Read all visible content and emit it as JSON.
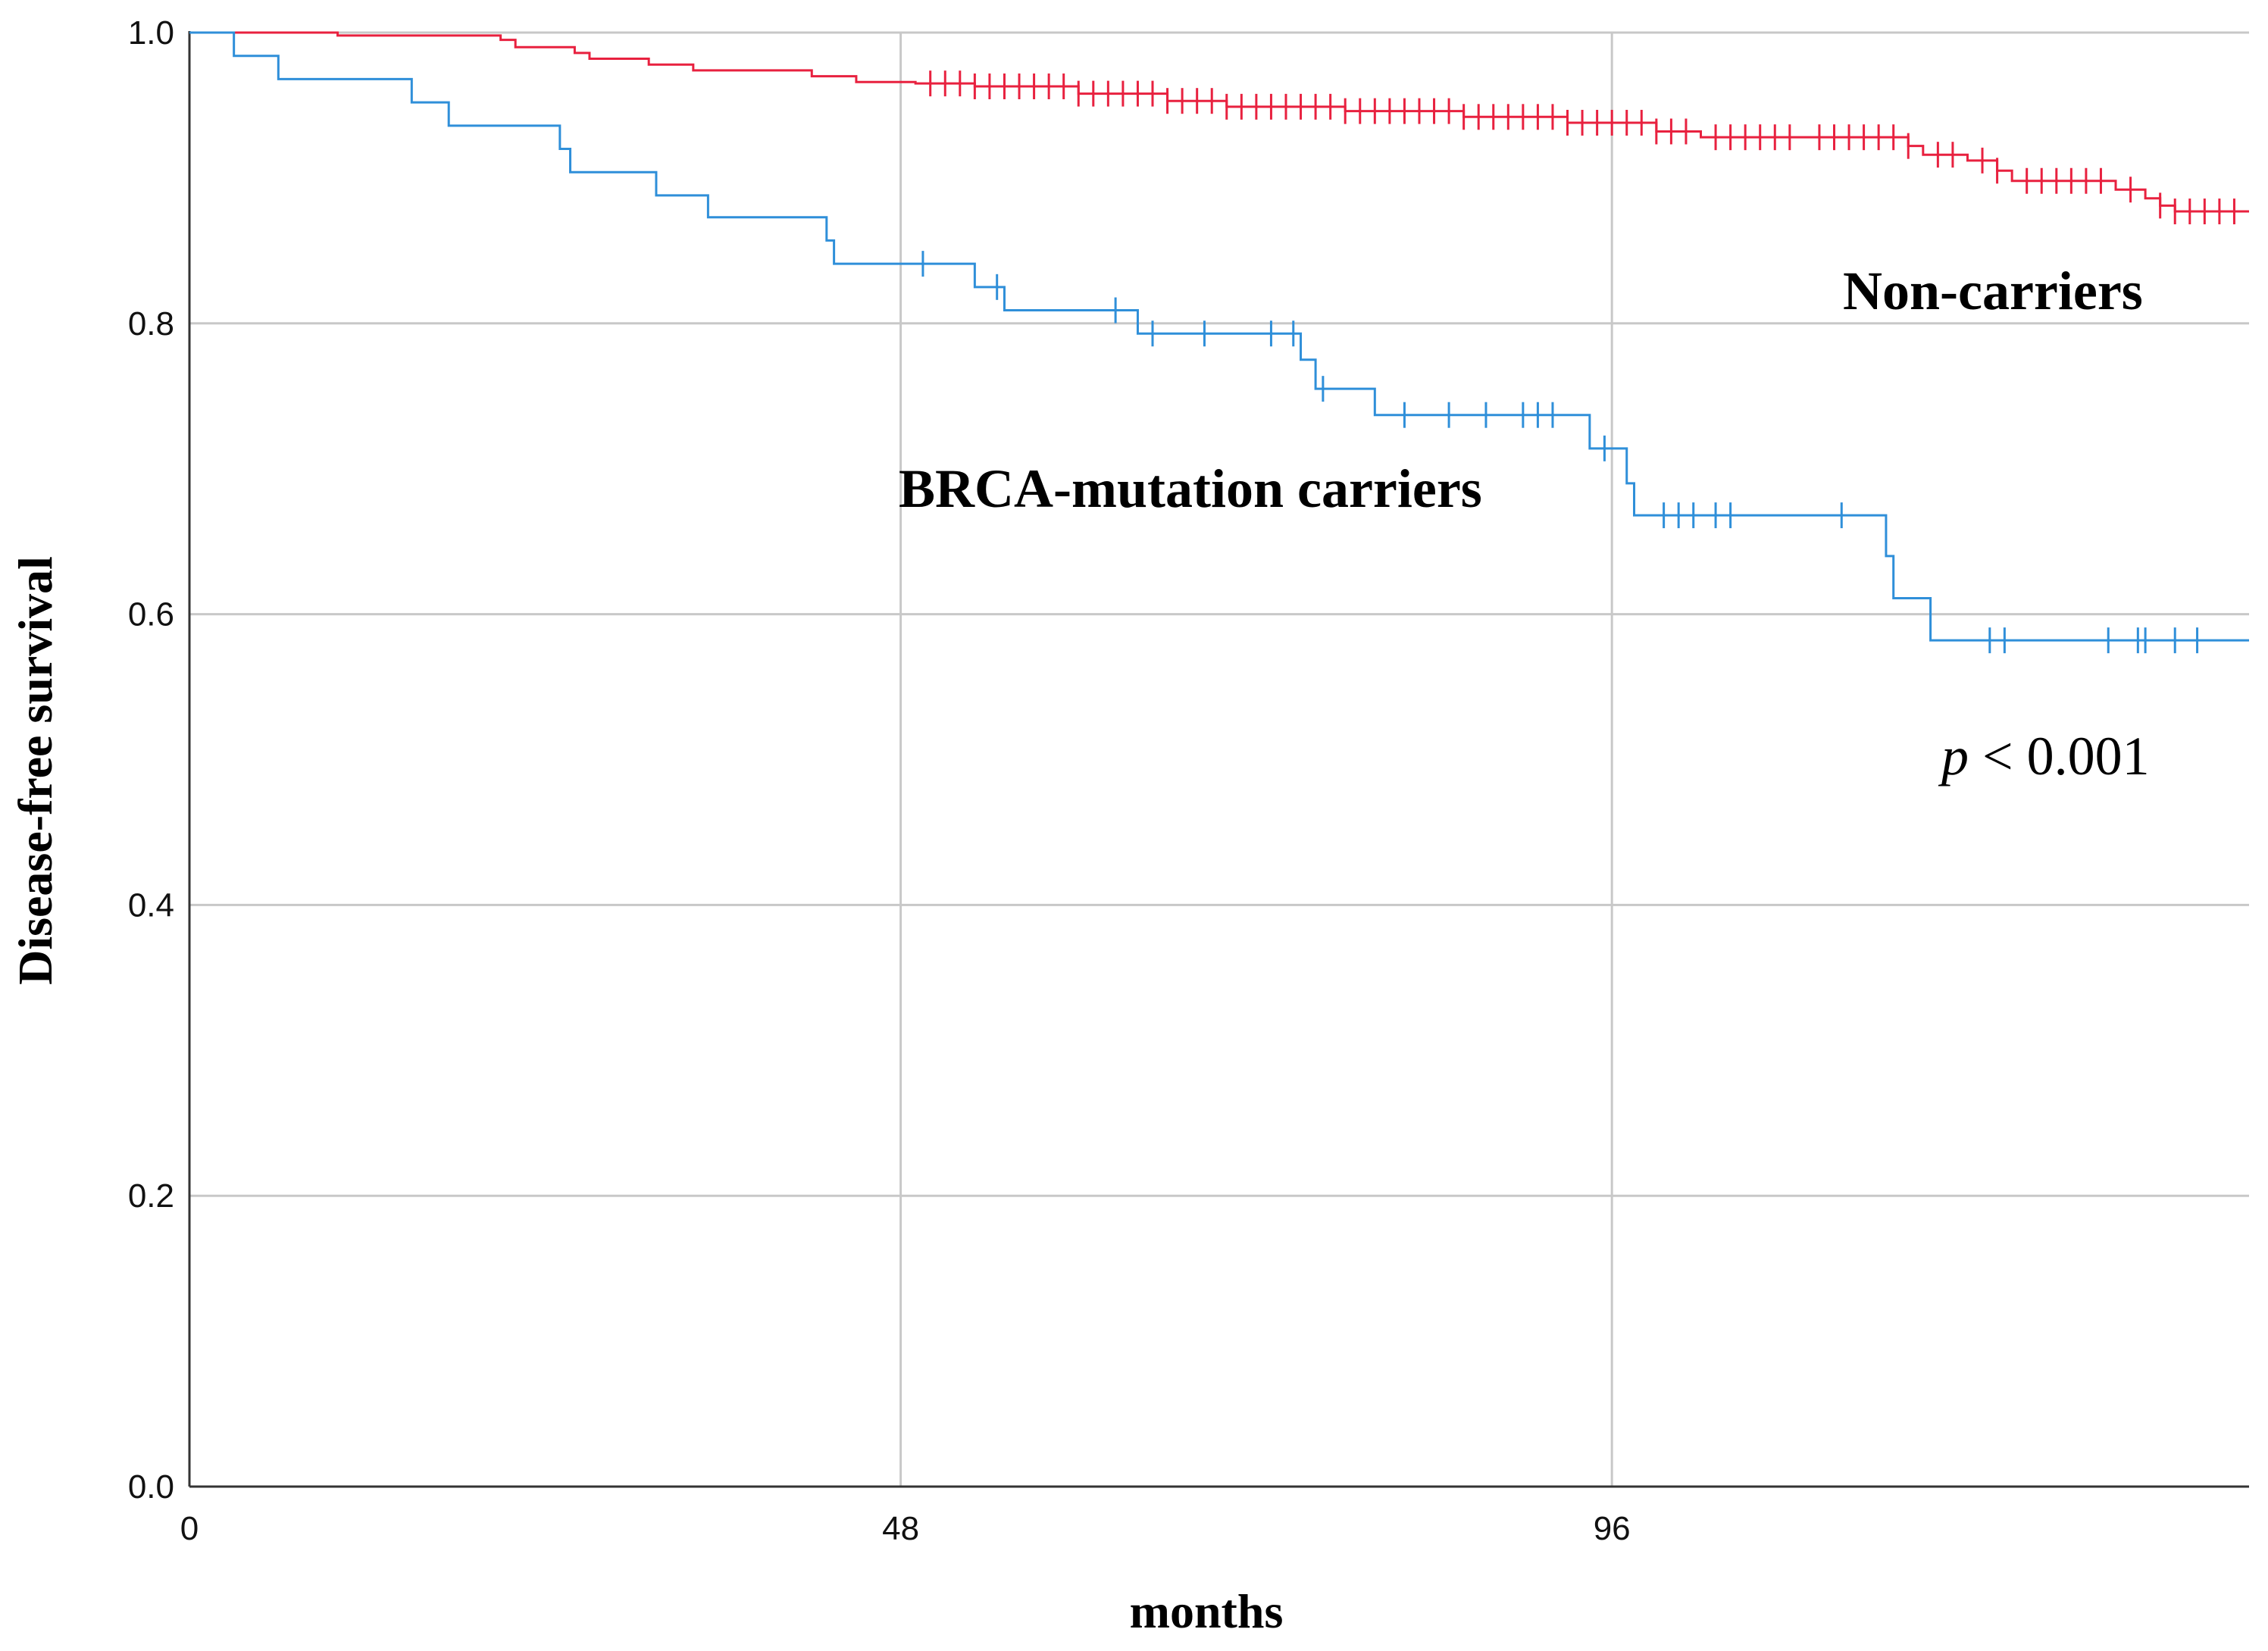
{
  "chart_data": {
    "type": "line",
    "subtype": "kaplan-meier",
    "xlabel": "months",
    "ylabel": "Disease-free survival",
    "xlim": [
      0,
      139
    ],
    "ylim": [
      0,
      1
    ],
    "xticks": [
      0,
      48,
      96
    ],
    "xtick_labels": [
      "0",
      "48",
      "96"
    ],
    "yticks": [
      0,
      0.2,
      0.4,
      0.6,
      0.8,
      1.0
    ],
    "ytick_labels": [
      "0.0",
      "0.2",
      "0.4",
      "0.6",
      "0.8",
      "1.0"
    ],
    "grid": true,
    "series": [
      {
        "name": "Non-carriers",
        "color": "#e8213f",
        "step_points": [
          [
            0,
            1.0
          ],
          [
            10,
            0.998
          ],
          [
            21,
            0.995
          ],
          [
            22,
            0.99
          ],
          [
            26,
            0.986
          ],
          [
            27,
            0.982
          ],
          [
            31,
            0.978
          ],
          [
            34,
            0.974
          ],
          [
            42,
            0.97
          ],
          [
            45,
            0.966
          ],
          [
            49,
            0.965
          ],
          [
            53,
            0.963
          ],
          [
            60,
            0.958
          ],
          [
            66,
            0.953
          ],
          [
            70,
            0.949
          ],
          [
            78,
            0.946
          ],
          [
            86,
            0.942
          ],
          [
            93,
            0.938
          ],
          [
            99,
            0.932
          ],
          [
            102,
            0.928
          ],
          [
            116,
            0.922
          ],
          [
            117,
            0.916
          ],
          [
            120,
            0.912
          ],
          [
            122,
            0.905
          ],
          [
            123,
            0.898
          ],
          [
            130,
            0.892
          ],
          [
            132,
            0.886
          ],
          [
            133,
            0.881
          ],
          [
            134,
            0.877
          ],
          [
            139,
            0.877
          ]
        ],
        "censor_x": [
          50,
          51,
          52,
          53,
          54,
          55,
          56,
          57,
          58,
          59,
          60,
          61,
          62,
          63,
          64,
          65,
          66,
          67,
          68,
          69,
          70,
          71,
          72,
          73,
          74,
          75,
          76,
          77,
          78,
          79,
          80,
          81,
          82,
          83,
          84,
          85,
          86,
          87,
          88,
          89,
          90,
          91,
          92,
          93,
          94,
          95,
          96,
          97,
          98,
          99,
          100,
          101,
          103,
          104,
          105,
          106,
          107,
          108,
          110,
          111,
          112,
          113,
          114,
          115,
          116,
          118,
          119,
          121,
          122,
          124,
          125,
          126,
          127,
          128,
          129,
          131,
          133,
          134,
          135,
          136,
          137,
          138
        ]
      },
      {
        "name": "BRCA-mutation carriers",
        "color": "#2f8fd9",
        "step_points": [
          [
            0,
            1.0
          ],
          [
            3,
            0.984
          ],
          [
            6,
            0.968
          ],
          [
            15,
            0.952
          ],
          [
            17.5,
            0.936
          ],
          [
            25,
            0.92
          ],
          [
            25.7,
            0.904
          ],
          [
            31.5,
            0.888
          ],
          [
            35,
            0.873
          ],
          [
            43,
            0.857
          ],
          [
            43.5,
            0.841
          ],
          [
            53,
            0.825
          ],
          [
            55,
            0.809
          ],
          [
            64,
            0.793
          ],
          [
            75,
            0.775
          ],
          [
            76,
            0.755
          ],
          [
            80,
            0.737
          ],
          [
            94.5,
            0.714
          ],
          [
            97,
            0.69
          ],
          [
            97.5,
            0.668
          ],
          [
            114.5,
            0.64
          ],
          [
            115,
            0.611
          ],
          [
            117.5,
            0.582
          ],
          [
            139,
            0.582
          ]
        ],
        "censor_x": [
          49.5,
          54.5,
          62.5,
          65,
          68.5,
          73,
          74.5,
          76.5,
          82,
          85,
          87.5,
          90,
          91,
          92,
          95.5,
          99.5,
          100.5,
          101.5,
          103,
          104,
          111.5,
          121.5,
          122.5,
          129.5,
          131.5,
          132,
          134,
          135.5
        ]
      }
    ],
    "annotations": {
      "non_carriers_label": "Non-carriers",
      "carriers_label": "BRCA-mutation carriers",
      "p_symbol": "p",
      "p_value": " < 0.001"
    }
  }
}
